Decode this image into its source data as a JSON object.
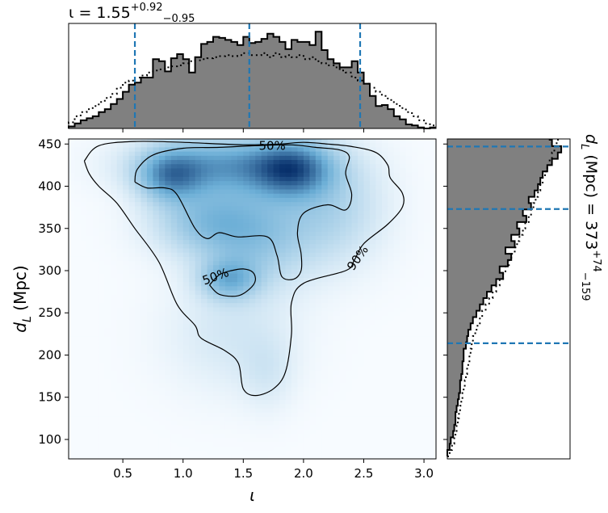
{
  "chart_data": [
    {
      "name": "top-marginal",
      "type": "histogram",
      "title_parts": {
        "lhs": "ι = 1.55",
        "sup": "+0.92",
        "sub": "−0.95"
      },
      "xlim": [
        0.05,
        3.1
      ],
      "bins_start": 0.05,
      "bin_width": 0.05,
      "filled_counts": [
        0.02,
        0.05,
        0.08,
        0.1,
        0.12,
        0.16,
        0.19,
        0.24,
        0.29,
        0.36,
        0.43,
        0.45,
        0.5,
        0.5,
        0.68,
        0.66,
        0.56,
        0.69,
        0.73,
        0.68,
        0.55,
        0.7,
        0.83,
        0.85,
        0.9,
        0.89,
        0.87,
        0.85,
        0.82,
        0.9,
        0.84,
        0.85,
        0.88,
        0.93,
        0.9,
        0.85,
        0.78,
        0.87,
        0.85,
        0.85,
        0.82,
        0.95,
        0.77,
        0.68,
        0.64,
        0.6,
        0.6,
        0.66,
        0.55,
        0.44,
        0.32,
        0.22,
        0.23,
        0.19,
        0.12,
        0.09,
        0.04,
        0.03,
        0.01,
        0.0,
        0.01
      ],
      "prior_counts": [
        0.06,
        0.12,
        0.16,
        0.19,
        0.22,
        0.26,
        0.3,
        0.34,
        0.4,
        0.45,
        0.47,
        0.5,
        0.52,
        0.55,
        0.57,
        0.58,
        0.6,
        0.61,
        0.62,
        0.64,
        0.66,
        0.67,
        0.68,
        0.69,
        0.7,
        0.71,
        0.72,
        0.71,
        0.72,
        0.74,
        0.72,
        0.72,
        0.74,
        0.7,
        0.74,
        0.7,
        0.72,
        0.7,
        0.72,
        0.68,
        0.7,
        0.66,
        0.64,
        0.62,
        0.6,
        0.57,
        0.55,
        0.5,
        0.47,
        0.44,
        0.4,
        0.36,
        0.32,
        0.28,
        0.24,
        0.2,
        0.16,
        0.12,
        0.08,
        0.05,
        0.03
      ],
      "quantile_lines": [
        0.6,
        1.55,
        2.47
      ]
    },
    {
      "name": "joint-density",
      "type": "heatmap",
      "xlabel": "ι",
      "ylabel": "d_L (Mpc)",
      "xlim": [
        0.05,
        3.1
      ],
      "ylim": [
        77,
        456
      ],
      "xticks": [
        "0.5",
        "1.0",
        "1.5",
        "2.0",
        "2.5",
        "3.0"
      ],
      "xtick_values": [
        0.5,
        1.0,
        1.5,
        2.0,
        2.5,
        3.0
      ],
      "yticks": [
        "100",
        "150",
        "200",
        "250",
        "300",
        "350",
        "400",
        "450"
      ],
      "ytick_values": [
        100,
        150,
        200,
        250,
        300,
        350,
        400,
        450
      ],
      "density_blobs": [
        {
          "x": 1.9,
          "y": 420,
          "sx": 0.22,
          "sy": 22,
          "w": 1.0
        },
        {
          "x": 1.35,
          "y": 425,
          "sx": 0.45,
          "sy": 22,
          "w": 0.8
        },
        {
          "x": 0.9,
          "y": 412,
          "sx": 0.18,
          "sy": 20,
          "w": 0.75
        },
        {
          "x": 1.2,
          "y": 360,
          "sx": 0.3,
          "sy": 28,
          "w": 0.5
        },
        {
          "x": 1.6,
          "y": 340,
          "sx": 0.3,
          "sy": 40,
          "w": 0.45
        },
        {
          "x": 1.38,
          "y": 290,
          "sx": 0.16,
          "sy": 16,
          "w": 0.6
        },
        {
          "x": 2.2,
          "y": 375,
          "sx": 0.3,
          "sy": 45,
          "w": 0.35
        },
        {
          "x": 1.4,
          "y": 225,
          "sx": 0.35,
          "sy": 45,
          "w": 0.15
        },
        {
          "x": 1.7,
          "y": 180,
          "sx": 0.15,
          "sy": 30,
          "w": 0.12
        }
      ],
      "contours": [
        {
          "label": "90%",
          "label_at": [
            2.45,
            315
          ],
          "label_angle": -55,
          "points": [
            [
              0.18,
              430
            ],
            [
              0.3,
              448
            ],
            [
              0.6,
              453
            ],
            [
              1.0,
              452
            ],
            [
              1.5,
              449
            ],
            [
              1.8,
              450
            ],
            [
              2.0,
              452
            ],
            [
              2.2,
              450
            ],
            [
              2.4,
              447
            ],
            [
              2.6,
              440
            ],
            [
              2.7,
              425
            ],
            [
              2.72,
              410
            ],
            [
              2.82,
              392
            ],
            [
              2.82,
              375
            ],
            [
              2.7,
              355
            ],
            [
              2.5,
              332
            ],
            [
              2.42,
              312
            ],
            [
              2.35,
              300
            ],
            [
              2.0,
              285
            ],
            [
              1.9,
              262
            ],
            [
              1.9,
              225
            ],
            [
              1.85,
              180
            ],
            [
              1.75,
              160
            ],
            [
              1.6,
              152
            ],
            [
              1.5,
              160
            ],
            [
              1.46,
              190
            ],
            [
              1.35,
              205
            ],
            [
              1.15,
              220
            ],
            [
              1.1,
              235
            ],
            [
              0.95,
              260
            ],
            [
              0.8,
              310
            ],
            [
              0.6,
              350
            ],
            [
              0.45,
              380
            ],
            [
              0.3,
              400
            ],
            [
              0.22,
              415
            ],
            [
              0.18,
              430
            ]
          ]
        },
        {
          "label": "50%",
          "label_at": [
            1.74,
            448
          ],
          "label_angle": 0,
          "points": [
            [
              0.6,
              405
            ],
            [
              0.62,
              420
            ],
            [
              0.75,
              437
            ],
            [
              1.0,
              445
            ],
            [
              1.3,
              446
            ],
            [
              1.6,
              448
            ],
            [
              1.9,
              449
            ],
            [
              2.1,
              446
            ],
            [
              2.3,
              443
            ],
            [
              2.38,
              435
            ],
            [
              2.35,
              415
            ],
            [
              2.4,
              390
            ],
            [
              2.35,
              372
            ],
            [
              2.2,
              378
            ],
            [
              2.0,
              368
            ],
            [
              1.95,
              345
            ],
            [
              1.98,
              320
            ],
            [
              1.98,
              300
            ],
            [
              1.92,
              290
            ],
            [
              1.82,
              293
            ],
            [
              1.78,
              318
            ],
            [
              1.7,
              340
            ],
            [
              1.45,
              340
            ],
            [
              1.3,
              345
            ],
            [
              1.2,
              338
            ],
            [
              1.1,
              350
            ],
            [
              0.95,
              390
            ],
            [
              0.85,
              398
            ],
            [
              0.7,
              398
            ],
            [
              0.6,
              405
            ]
          ]
        },
        {
          "label": "50%",
          "label_at": [
            1.27,
            293
          ],
          "label_angle": -20,
          "points": [
            [
              1.22,
              283
            ],
            [
              1.3,
              272
            ],
            [
              1.45,
              270
            ],
            [
              1.55,
              278
            ],
            [
              1.6,
              288
            ],
            [
              1.58,
              298
            ],
            [
              1.5,
              302
            ],
            [
              1.4,
              300
            ],
            [
              1.3,
              295
            ],
            [
              1.22,
              283
            ]
          ]
        }
      ]
    },
    {
      "name": "right-marginal",
      "type": "histogram",
      "orientation": "horizontal",
      "side_label_parts": {
        "lhs": "d_L (Mpc) = 373",
        "sup": "+74",
        "sub": "−159"
      },
      "ylim": [
        77,
        456
      ],
      "bins_start": 80,
      "bin_width": 7.5,
      "filled_counts": [
        0.0,
        0.02,
        0.03,
        0.05,
        0.06,
        0.07,
        0.07,
        0.08,
        0.09,
        0.1,
        0.11,
        0.11,
        0.12,
        0.13,
        0.13,
        0.14,
        0.14,
        0.16,
        0.17,
        0.18,
        0.2,
        0.22,
        0.25,
        0.28,
        0.31,
        0.34,
        0.38,
        0.42,
        0.48,
        0.45,
        0.52,
        0.55,
        0.5,
        0.58,
        0.55,
        0.62,
        0.6,
        0.68,
        0.65,
        0.72,
        0.7,
        0.75,
        0.78,
        0.8,
        0.82,
        0.86,
        0.9,
        0.95,
        0.98,
        0.9,
        0.88
      ],
      "prior_counts": [
        0.02,
        0.04,
        0.06,
        0.07,
        0.08,
        0.09,
        0.1,
        0.11,
        0.12,
        0.13,
        0.14,
        0.15,
        0.16,
        0.17,
        0.18,
        0.19,
        0.2,
        0.21,
        0.22,
        0.24,
        0.26,
        0.28,
        0.3,
        0.33,
        0.36,
        0.39,
        0.42,
        0.45,
        0.48,
        0.5,
        0.53,
        0.55,
        0.58,
        0.6,
        0.62,
        0.65,
        0.67,
        0.7,
        0.72,
        0.74,
        0.76,
        0.78,
        0.8,
        0.82,
        0.84,
        0.86,
        0.88,
        0.9,
        0.92,
        0.94,
        0.96
      ],
      "quantile_lines": [
        214,
        373,
        447
      ]
    }
  ],
  "colors": {
    "hist_fill": "#808080",
    "quantile_line": "#1f77b4",
    "contour": "#000000",
    "cmap_low": "#f7fbff",
    "cmap_high": "#08306b"
  }
}
